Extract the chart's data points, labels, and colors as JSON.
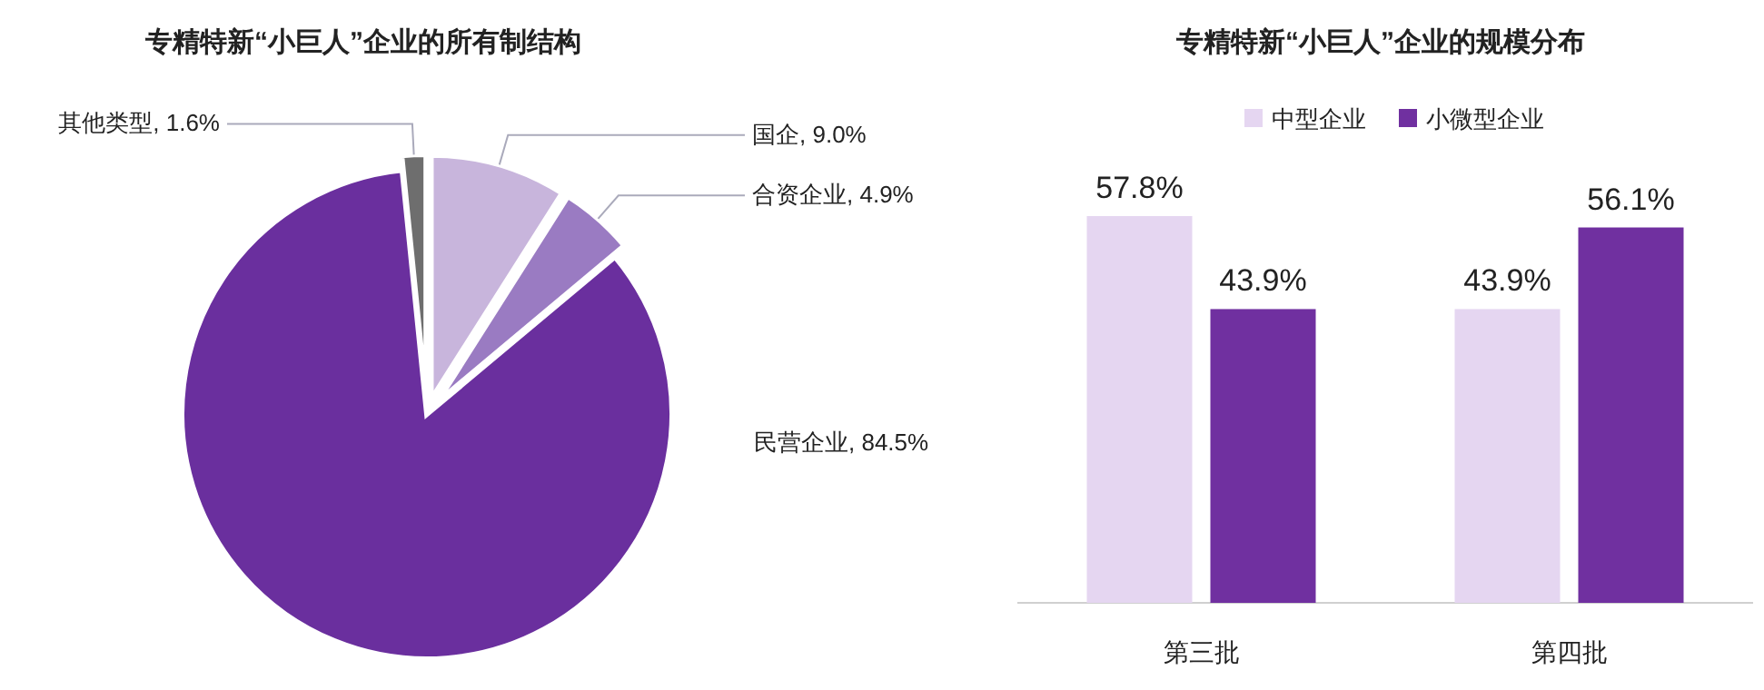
{
  "chart_data": [
    {
      "type": "pie",
      "title": "专精特新“小巨人”企业的所有制结构",
      "categories": [
        "国企",
        "合资企业",
        "民营企业",
        "其他类型"
      ],
      "values": [
        9.0,
        4.9,
        84.5,
        1.6
      ],
      "value_labels": [
        "9.0%",
        "4.9%",
        "84.5%",
        "1.6%"
      ],
      "colors": [
        "#c8b5dc",
        "#9a7bc2",
        "#6a2f9e",
        "#6e6e6e"
      ]
    },
    {
      "type": "bar",
      "title": "专精特新“小巨人”企业的规模分布",
      "categories": [
        "第三批",
        "第四批"
      ],
      "series": [
        {
          "name": "中型企业",
          "color": "#e5d6f1",
          "values": [
            57.8,
            43.9
          ],
          "value_labels": [
            "57.8%",
            "43.9%"
          ]
        },
        {
          "name": "小微型企业",
          "color": "#7030a0",
          "values": [
            43.9,
            56.1
          ],
          "value_labels": [
            "43.9%",
            "56.1%"
          ]
        }
      ],
      "legend": "top right"
    }
  ]
}
